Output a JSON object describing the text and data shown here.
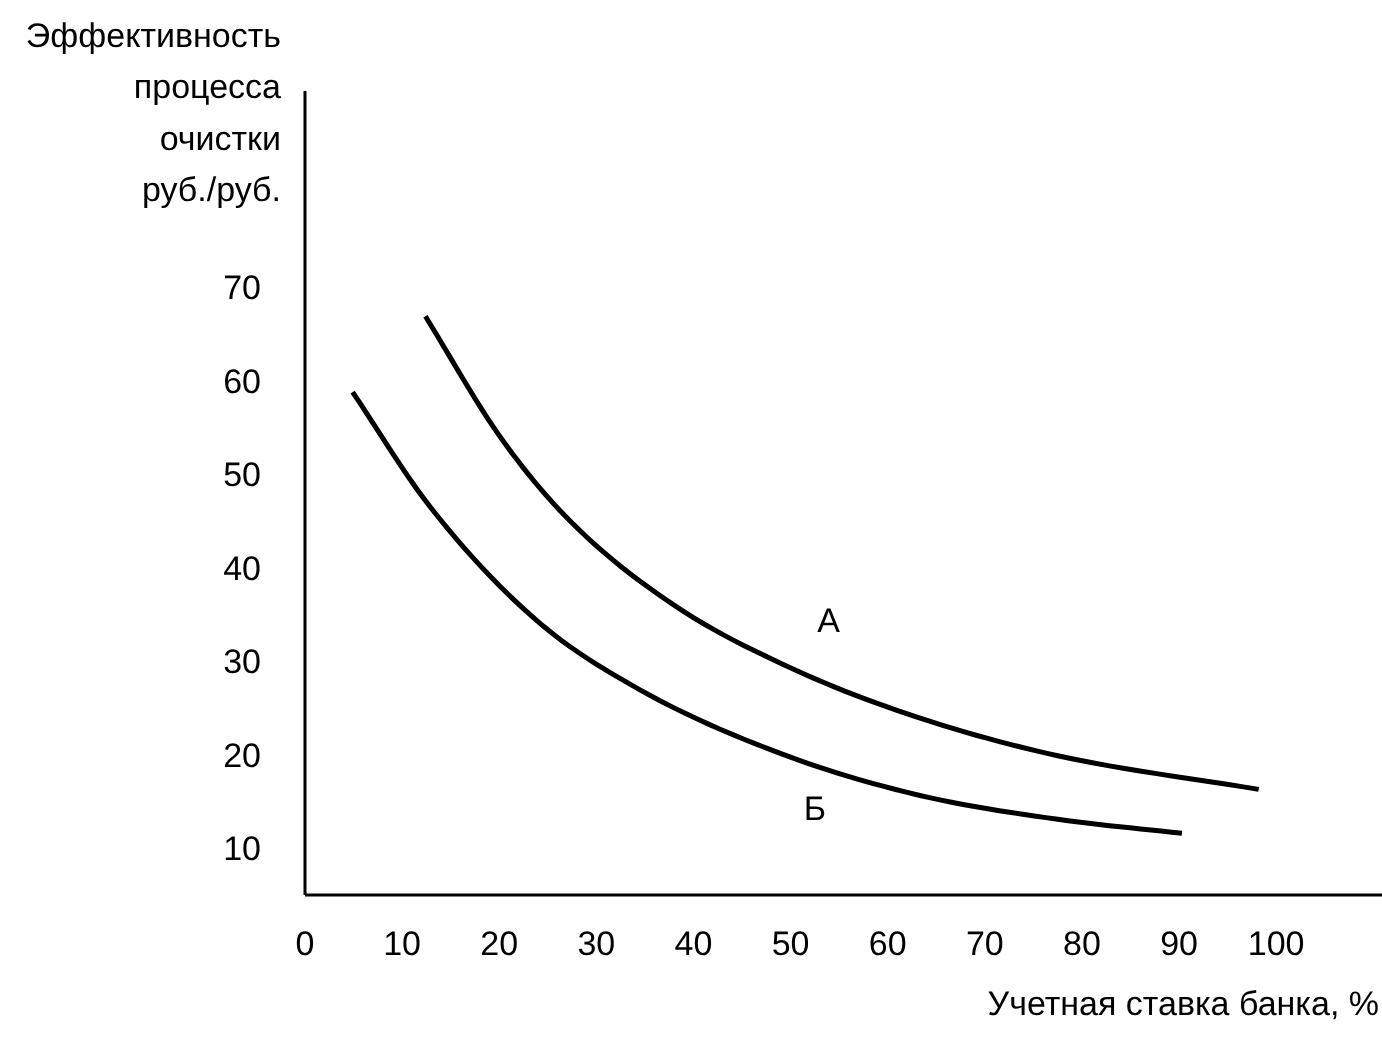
{
  "chart_data": {
    "type": "line",
    "ylabel": "Эффективность\nпроцесса\nочистки\nруб./руб.",
    "xlabel": "Учетная ставка банка, %",
    "series": [
      {
        "color": "#000000",
        "x": [
          12.4,
          20.1,
          27.3,
          38.0,
          50.2,
          63.1,
          77.5,
          98.2
        ],
        "values": [
          66.9,
          54.0,
          45.0,
          36.0,
          29.2,
          24.0,
          19.9,
          16.3
        ]
      },
      {
        "color": "#000000",
        "x": [
          4.9,
          12.9,
          23.7,
          34.4,
          48.8,
          63.1,
          77.5,
          90.3
        ],
        "values": [
          58.8,
          46.5,
          34.5,
          27.0,
          20.2,
          15.7,
          13.1,
          11.6
        ]
      }
    ],
    "annotations": [
      "А",
      "Б"
    ],
    "xlim": [
      0,
      111
    ],
    "ylim": [
      5,
      91
    ],
    "xticks": [
      0,
      10,
      20,
      30,
      40,
      50,
      60,
      70,
      80,
      90,
      100
    ],
    "yticks": [
      10,
      20,
      30,
      40,
      50,
      60,
      70
    ],
    "grid": false,
    "marker": "none",
    "line_style": "solid"
  }
}
